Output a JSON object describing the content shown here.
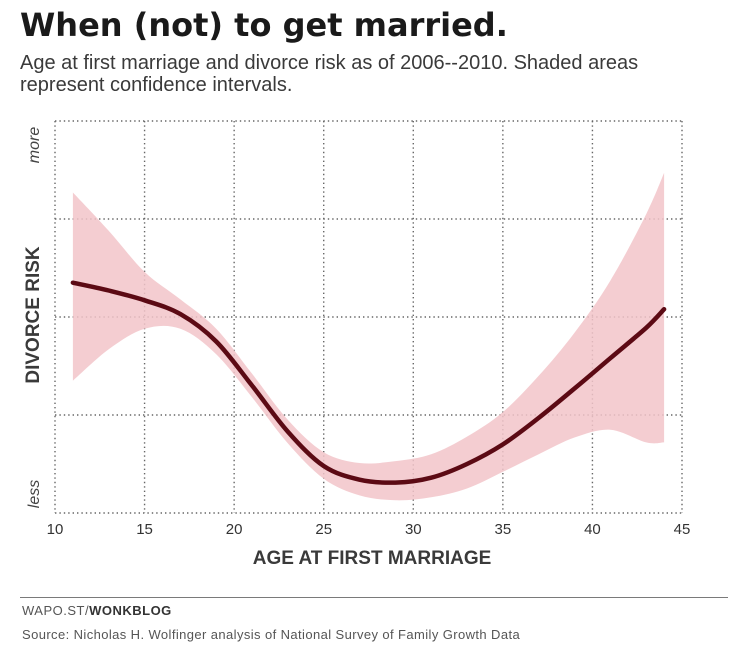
{
  "header": {
    "title": "When (not) to get married.",
    "subtitle": "Age at first marriage and divorce risk as of 2006--2010. Shaded areas represent confidence intervals."
  },
  "chart_data": {
    "type": "line",
    "xlabel": "AGE AT FIRST MARRIAGE",
    "ylabel": "DIVORCE RISK",
    "x_ticks": [
      10,
      15,
      20,
      25,
      30,
      35,
      40,
      45
    ],
    "xlim": [
      10,
      45
    ],
    "ylim": [
      0,
      4
    ],
    "y_tick_labels": {
      "top": "more",
      "bottom": "less"
    },
    "grid": true,
    "grid_style": "dotted",
    "series": [
      {
        "x": [
          11,
          13,
          15,
          17,
          19,
          21,
          23,
          25,
          27,
          29,
          31,
          33,
          35,
          37,
          39,
          41,
          43,
          44
        ],
        "y": [
          2.35,
          2.27,
          2.17,
          2.03,
          1.75,
          1.3,
          0.83,
          0.48,
          0.34,
          0.31,
          0.36,
          0.5,
          0.7,
          0.97,
          1.27,
          1.58,
          1.89,
          2.08
        ],
        "lower": [
          1.35,
          1.67,
          1.88,
          1.88,
          1.62,
          1.18,
          0.71,
          0.35,
          0.18,
          0.13,
          0.16,
          0.25,
          0.42,
          0.6,
          0.77,
          0.85,
          0.72,
          0.72
        ],
        "upper": [
          3.27,
          2.88,
          2.46,
          2.18,
          1.88,
          1.42,
          0.95,
          0.62,
          0.51,
          0.53,
          0.6,
          0.78,
          1.03,
          1.4,
          1.84,
          2.37,
          3.05,
          3.47
        ]
      }
    ],
    "colors": {
      "line": "#5c0a14",
      "band": "#f2c4c9",
      "grid": "#666666",
      "axis_text": "#333333"
    }
  },
  "footer": {
    "credit_prefix": "WAPO.ST/",
    "credit_bold": "WONKBLOG",
    "source": "Source: Nicholas H. Wolfinger analysis of National Survey of Family Growth Data"
  }
}
